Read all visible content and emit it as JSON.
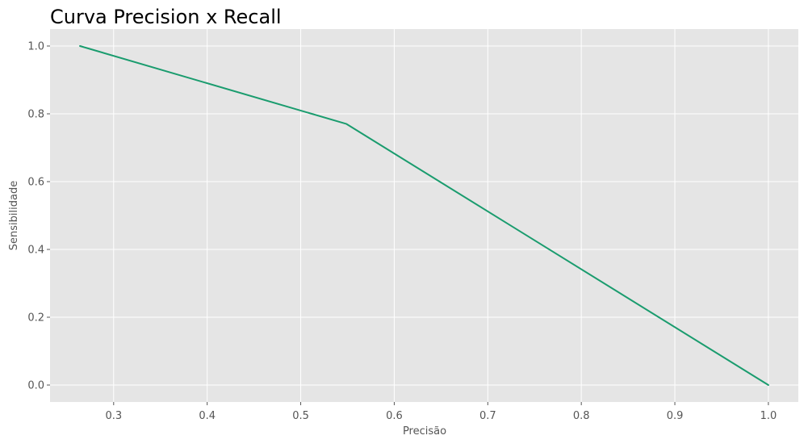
{
  "chart_data": {
    "type": "line",
    "title": "Curva Precision x Recall",
    "xlabel": "Precisão",
    "ylabel": "Sensibilidade",
    "xlim": [
      0.232,
      1.032
    ],
    "ylim": [
      -0.05,
      1.05
    ],
    "xticks": [
      0.3,
      0.4,
      0.5,
      0.6,
      0.7,
      0.8,
      0.9,
      1.0
    ],
    "xtick_labels": [
      "0.3",
      "0.4",
      "0.5",
      "0.6",
      "0.7",
      "0.8",
      "0.9",
      "1.0"
    ],
    "yticks": [
      0.0,
      0.2,
      0.4,
      0.6,
      0.8,
      1.0
    ],
    "ytick_labels": [
      "0.0",
      "0.2",
      "0.4",
      "0.6",
      "0.8",
      "1.0"
    ],
    "grid": true,
    "legend": false,
    "series": [
      {
        "x": [
          0.264,
          0.549,
          1.0
        ],
        "y": [
          1.0,
          0.77,
          0.0
        ],
        "color": "#1a9c6e"
      }
    ],
    "colors": {
      "plot_background": "#e5e5e5",
      "grid": "#ffffff",
      "tick_text": "#555555",
      "title_text": "#000000"
    }
  }
}
